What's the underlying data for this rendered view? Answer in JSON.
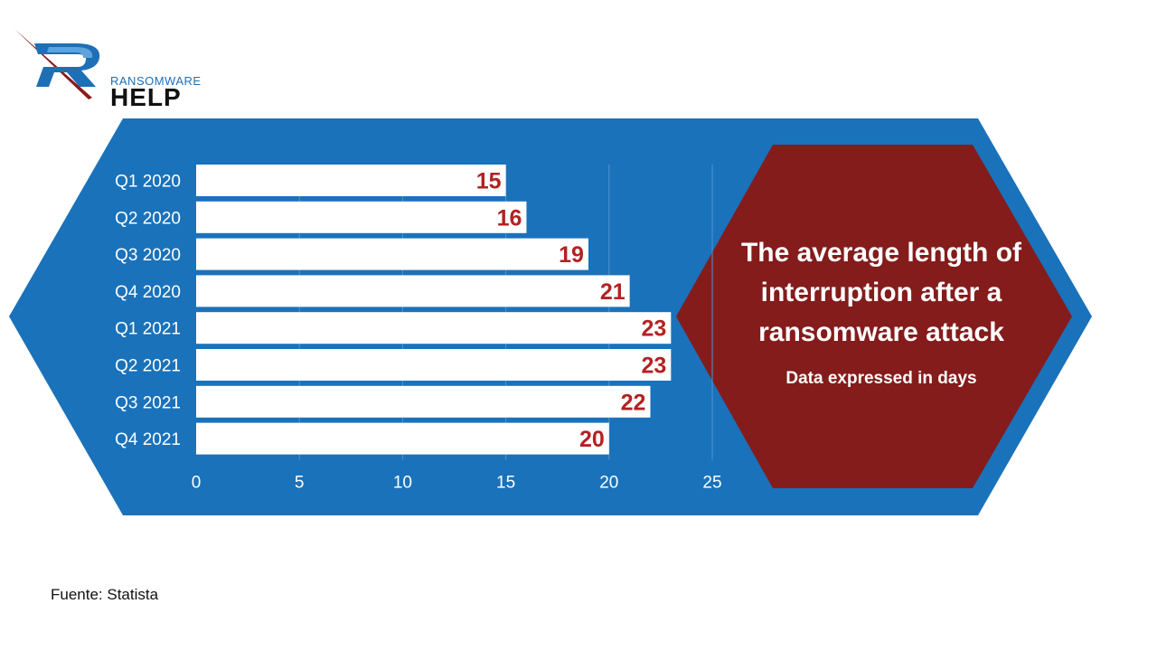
{
  "logo": {
    "small_text": "RANSOMWARE",
    "big_text": "HELP",
    "colors": {
      "blue": "#1e6fb5",
      "red": "#8b1a1a",
      "dark": "#111111"
    }
  },
  "colors": {
    "background_shape": "#1a72bb",
    "accent_shape": "#841c1c",
    "bar": "#ffffff",
    "value_label": "#b22222",
    "axis_text": "#ffffff"
  },
  "chart_data": {
    "type": "bar",
    "orientation": "horizontal",
    "title": "The average length of interruption after a ransomware attack",
    "subtitle": "Data expressed in days",
    "categories": [
      "Q1 2020",
      "Q2 2020",
      "Q3 2020",
      "Q4 2020",
      "Q1 2021",
      "Q2 2021",
      "Q3 2021",
      "Q4 2021"
    ],
    "values": [
      15,
      16,
      19,
      21,
      23,
      23,
      22,
      20
    ],
    "xlim": [
      0,
      25
    ],
    "xticks": [
      0,
      5,
      10,
      15,
      20,
      25
    ],
    "xlabel": "",
    "ylabel": "",
    "grid": true,
    "data_labels": true
  },
  "footer": {
    "source": "Fuente: Statista"
  }
}
